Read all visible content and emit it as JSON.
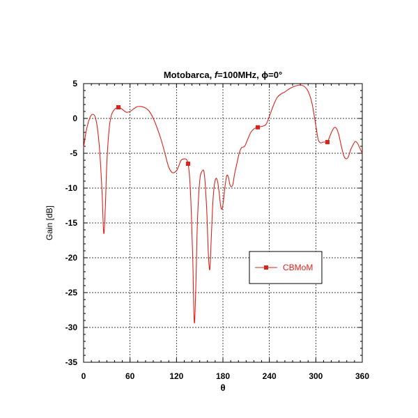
{
  "chart_data": {
    "type": "line",
    "title_prefix": "Motobarca, ",
    "title_f": "f",
    "title_suffix": "=100MHz, ϕ=0°",
    "xlabel": "θ",
    "ylabel": "Gain [dB]",
    "xlim": [
      0,
      360
    ],
    "ylim": [
      -35,
      5
    ],
    "xticks": [
      0,
      60,
      120,
      180,
      240,
      300,
      360
    ],
    "yticks": [
      5,
      0,
      -5,
      -10,
      -15,
      -20,
      -25,
      -30,
      -35
    ],
    "grid": true,
    "legend_position": "center-right",
    "series": [
      {
        "name": "CBMoM",
        "color": "#e0201a",
        "marker_x": [
          45,
          135,
          225,
          315
        ],
        "x": [
          0,
          3,
          6,
          9,
          12,
          15,
          18,
          21,
          24,
          26,
          28,
          30,
          33,
          36,
          40,
          45,
          50,
          55,
          60,
          65,
          70,
          78,
          85,
          92,
          100,
          105,
          110,
          115,
          120,
          123,
          126,
          130,
          133,
          135,
          137,
          139,
          141,
          143,
          145,
          147,
          150,
          153,
          156,
          159,
          161,
          163,
          165,
          167,
          169,
          171,
          173,
          175,
          177,
          179,
          181,
          183,
          185,
          187,
          189,
          191,
          193,
          195,
          198,
          201,
          204,
          208,
          212,
          216,
          220,
          224,
          228,
          232,
          236,
          240,
          245,
          250,
          255,
          260,
          265,
          270,
          275,
          280,
          285,
          290,
          295,
          300,
          303,
          306,
          309,
          312,
          315,
          318,
          321,
          324,
          327,
          330,
          333,
          336,
          339,
          342,
          345,
          348,
          351,
          354,
          357,
          360
        ],
        "y": [
          -4.2,
          -2.0,
          -0.6,
          0.3,
          0.6,
          0.2,
          -1.5,
          -5.0,
          -11.0,
          -16.5,
          -13.0,
          -6.5,
          -1.5,
          0.5,
          1.3,
          1.6,
          1.3,
          0.9,
          1.0,
          1.4,
          1.7,
          1.6,
          1.0,
          -0.5,
          -3.0,
          -5.0,
          -7.0,
          -7.8,
          -7.5,
          -6.8,
          -6.0,
          -5.8,
          -5.9,
          -6.5,
          -8.5,
          -13.0,
          -20.0,
          -29.3,
          -24.0,
          -15.0,
          -9.0,
          -7.6,
          -8.0,
          -13.0,
          -19.0,
          -21.7,
          -17.0,
          -12.0,
          -9.5,
          -8.6,
          -9.0,
          -10.5,
          -12.5,
          -13.0,
          -11.5,
          -9.5,
          -8.2,
          -8.4,
          -9.5,
          -9.8,
          -9.4,
          -8.0,
          -6.5,
          -5.0,
          -4.2,
          -4.0,
          -3.0,
          -2.0,
          -1.5,
          -1.3,
          -1.2,
          -1.1,
          -0.8,
          0.3,
          1.8,
          3.0,
          3.5,
          3.8,
          4.2,
          4.5,
          4.7,
          4.8,
          4.6,
          3.9,
          2.2,
          -1.0,
          -3.0,
          -3.5,
          -3.4,
          -3.4,
          -3.4,
          -2.6,
          -1.8,
          -1.3,
          -1.5,
          -2.5,
          -4.0,
          -5.3,
          -5.8,
          -5.5,
          -4.5,
          -3.8,
          -3.3,
          -3.6,
          -4.3,
          -5.0
        ]
      }
    ]
  }
}
